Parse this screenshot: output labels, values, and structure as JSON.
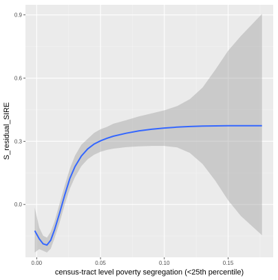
{
  "chart_data": {
    "type": "line",
    "title": "",
    "xlabel": "census-tract level poverty segregation (<25th percentile)",
    "ylabel": "S_residual_SIRE",
    "xlim": [
      -0.0088,
      0.1853
    ],
    "ylim": [
      -0.251,
      0.948
    ],
    "x_ticks": [
      0.0,
      0.05,
      0.1,
      0.15
    ],
    "x_tick_labels": [
      "0.00",
      "0.05",
      "0.10",
      "0.15"
    ],
    "y_ticks": [
      0.0,
      0.3,
      0.6,
      0.9
    ],
    "y_tick_labels": [
      "0.0",
      "0.3",
      "0.6",
      "0.9"
    ],
    "grid": true,
    "legend": "none",
    "colors": {
      "panel": "#ebebeb",
      "grid_major": "#ffffff",
      "grid_minor": "#f4f4f4",
      "line": "#3366ff",
      "ribbon": "#999999"
    },
    "series": [
      {
        "x": [
          -0.0015,
          0.002,
          0.005,
          0.008,
          0.011,
          0.014,
          0.018,
          0.022,
          0.026,
          0.03,
          0.035,
          0.04,
          0.045,
          0.05,
          0.055,
          0.06,
          0.07,
          0.08,
          0.09,
          0.1,
          0.11,
          0.12,
          0.13,
          0.14,
          0.15,
          0.16,
          0.1765
        ],
        "y": [
          -0.125,
          -0.163,
          -0.187,
          -0.193,
          -0.17,
          -0.12,
          -0.04,
          0.045,
          0.123,
          0.18,
          0.23,
          0.264,
          0.287,
          0.302,
          0.314,
          0.324,
          0.338,
          0.349,
          0.357,
          0.363,
          0.367,
          0.37,
          0.372,
          0.373,
          0.374,
          0.374,
          0.374
        ],
        "lower": [
          -0.228,
          -0.212,
          -0.22,
          -0.228,
          -0.21,
          -0.16,
          -0.085,
          0.0,
          0.075,
          0.13,
          0.182,
          0.215,
          0.236,
          0.25,
          0.259,
          0.265,
          0.272,
          0.276,
          0.278,
          0.278,
          0.271,
          0.245,
          0.192,
          0.112,
          0.02,
          -0.055,
          -0.146
        ],
        "upper": [
          -0.015,
          -0.11,
          -0.148,
          -0.158,
          -0.13,
          -0.08,
          0.005,
          0.09,
          0.17,
          0.232,
          0.283,
          0.312,
          0.34,
          0.357,
          0.368,
          0.383,
          0.4,
          0.418,
          0.432,
          0.447,
          0.467,
          0.5,
          0.555,
          0.64,
          0.73,
          0.8,
          0.905
        ]
      }
    ]
  }
}
